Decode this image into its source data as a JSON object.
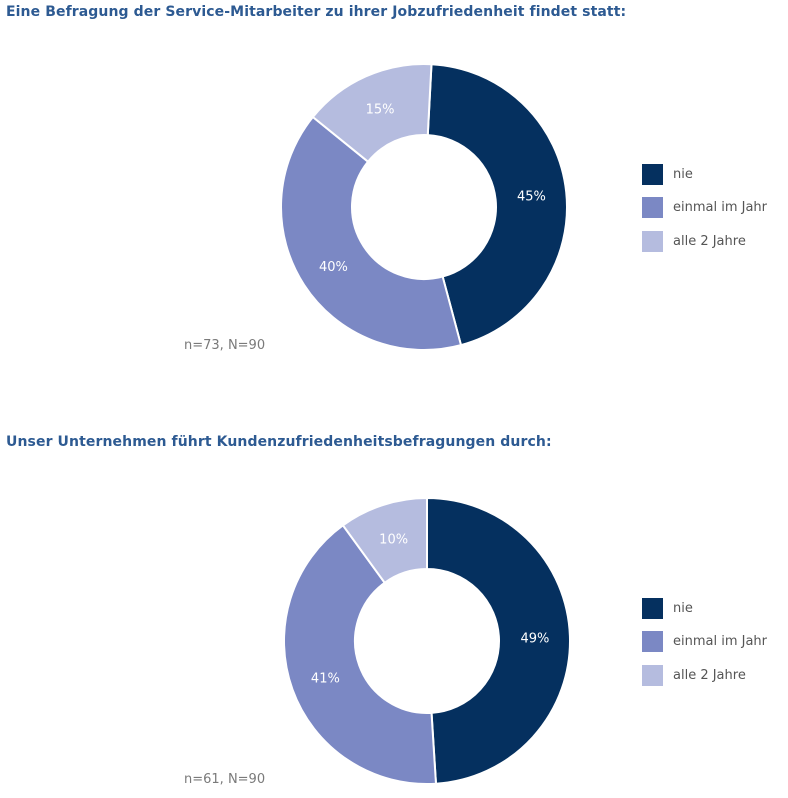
{
  "colors": {
    "title": "#2d5a92",
    "series": [
      "#05305f",
      "#7b88c4",
      "#b5bcdf"
    ],
    "label_dark_bg": "#ffffff",
    "label_light_bg": "#ffffff",
    "note": "#7a7a7a",
    "legend_text": "#555555"
  },
  "legend": [
    "nie",
    "einmal im Jahr",
    "alle 2 Jahre"
  ],
  "chart_data": [
    {
      "type": "pie",
      "title": "Eine Befragung der Service-Mitarbeiter zu ihrer Jobzufriedenheit findet statt:",
      "categories": [
        "nie",
        "einmal im Jahr",
        "alle 2 Jahre"
      ],
      "values": [
        45,
        40,
        15
      ],
      "value_labels": [
        "45%",
        "40%",
        "15%"
      ],
      "note": "n=73, N=90",
      "legend_placement": "right"
    },
    {
      "type": "pie",
      "title": "Unser Unternehmen führt Kundenzufriedenheitsbefragungen durch:",
      "categories": [
        "nie",
        "einmal im Jahr",
        "alle 2 Jahre"
      ],
      "values": [
        49,
        41,
        10
      ],
      "value_labels": [
        "49%",
        "41%",
        "10%"
      ],
      "note": "n=61, N=90",
      "legend_placement": "right"
    }
  ]
}
